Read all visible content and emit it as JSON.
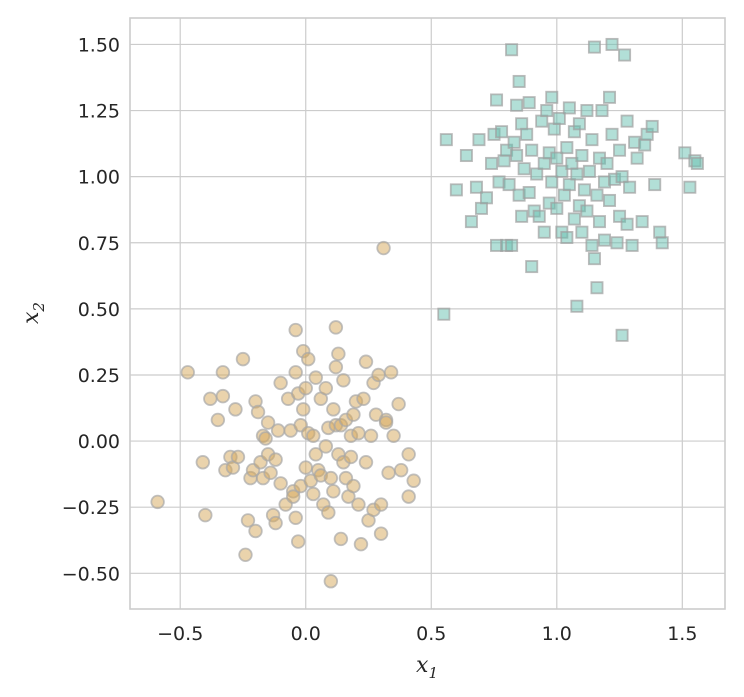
{
  "chart_data": {
    "type": "scatter",
    "title": "",
    "xlabel": "x_1",
    "ylabel": "x_2",
    "xlabel_parts": {
      "main": "x",
      "sub": "1"
    },
    "ylabel_parts": {
      "main": "x",
      "sub": "2"
    },
    "xlim": [
      -0.7,
      1.67
    ],
    "ylim": [
      -0.635,
      1.6
    ],
    "x_ticks": [
      -0.5,
      0.0,
      0.5,
      1.0,
      1.5
    ],
    "x_tick_labels": [
      "−0.5",
      "0.0",
      "0.5",
      "1.0",
      "1.5"
    ],
    "y_ticks": [
      -0.5,
      -0.25,
      0.0,
      0.25,
      0.5,
      0.75,
      1.0,
      1.25,
      1.5
    ],
    "y_tick_labels": [
      "−0.50",
      "−0.25",
      "0.00",
      "0.25",
      "0.50",
      "0.75",
      "1.00",
      "1.25",
      "1.50"
    ],
    "grid": true,
    "series": [
      {
        "marker": "circle",
        "color": "#d6a85a",
        "edge_color": "#a8a8a8",
        "opacity": 0.5,
        "points": [
          [
            -0.59,
            -0.23
          ],
          [
            -0.47,
            0.26
          ],
          [
            -0.41,
            -0.08
          ],
          [
            -0.4,
            -0.28
          ],
          [
            -0.38,
            0.16
          ],
          [
            -0.35,
            0.08
          ],
          [
            -0.33,
            0.26
          ],
          [
            -0.33,
            0.17
          ],
          [
            -0.32,
            -0.11
          ],
          [
            -0.3,
            -0.06
          ],
          [
            -0.29,
            -0.1
          ],
          [
            -0.28,
            0.12
          ],
          [
            -0.27,
            -0.06
          ],
          [
            -0.25,
            0.31
          ],
          [
            -0.24,
            -0.43
          ],
          [
            -0.23,
            -0.3
          ],
          [
            -0.22,
            -0.14
          ],
          [
            -0.21,
            -0.11
          ],
          [
            -0.2,
            0.15
          ],
          [
            -0.2,
            -0.34
          ],
          [
            -0.19,
            0.11
          ],
          [
            -0.18,
            -0.08
          ],
          [
            -0.17,
            0.02
          ],
          [
            -0.17,
            -0.14
          ],
          [
            -0.16,
            0.01
          ],
          [
            -0.15,
            -0.05
          ],
          [
            -0.15,
            0.07
          ],
          [
            -0.14,
            -0.12
          ],
          [
            -0.13,
            -0.28
          ],
          [
            -0.12,
            -0.31
          ],
          [
            -0.12,
            -0.07
          ],
          [
            -0.11,
            0.04
          ],
          [
            -0.1,
            0.22
          ],
          [
            -0.1,
            -0.16
          ],
          [
            -0.08,
            -0.24
          ],
          [
            -0.07,
            0.16
          ],
          [
            -0.06,
            0.04
          ],
          [
            -0.05,
            -0.19
          ],
          [
            -0.05,
            -0.21
          ],
          [
            -0.04,
            0.42
          ],
          [
            -0.04,
            0.26
          ],
          [
            -0.04,
            -0.29
          ],
          [
            -0.03,
            -0.38
          ],
          [
            -0.03,
            0.18
          ],
          [
            -0.02,
            0.06
          ],
          [
            -0.02,
            -0.17
          ],
          [
            -0.01,
            0.12
          ],
          [
            -0.01,
            0.34
          ],
          [
            0.0,
            0.2
          ],
          [
            0.0,
            -0.1
          ],
          [
            0.01,
            0.31
          ],
          [
            0.01,
            0.03
          ],
          [
            0.02,
            -0.15
          ],
          [
            0.03,
            0.02
          ],
          [
            0.03,
            -0.2
          ],
          [
            0.04,
            0.24
          ],
          [
            0.04,
            -0.05
          ],
          [
            0.05,
            -0.11
          ],
          [
            0.06,
            0.16
          ],
          [
            0.06,
            -0.13
          ],
          [
            0.07,
            -0.24
          ],
          [
            0.08,
            0.2
          ],
          [
            0.08,
            -0.02
          ],
          [
            0.09,
            0.05
          ],
          [
            0.09,
            -0.27
          ],
          [
            0.1,
            -0.53
          ],
          [
            0.1,
            -0.14
          ],
          [
            0.11,
            0.12
          ],
          [
            0.11,
            -0.19
          ],
          [
            0.12,
            0.06
          ],
          [
            0.12,
            0.43
          ],
          [
            0.12,
            0.28
          ],
          [
            0.13,
            0.33
          ],
          [
            0.13,
            -0.05
          ],
          [
            0.14,
            0.06
          ],
          [
            0.14,
            -0.37
          ],
          [
            0.15,
            0.23
          ],
          [
            0.15,
            -0.08
          ],
          [
            0.16,
            0.08
          ],
          [
            0.16,
            -0.14
          ],
          [
            0.17,
            -0.21
          ],
          [
            0.18,
            0.02
          ],
          [
            0.18,
            -0.06
          ],
          [
            0.19,
            0.1
          ],
          [
            0.19,
            -0.17
          ],
          [
            0.2,
            0.15
          ],
          [
            0.21,
            0.03
          ],
          [
            0.21,
            -0.24
          ],
          [
            0.22,
            -0.39
          ],
          [
            0.23,
            0.16
          ],
          [
            0.24,
            0.3
          ],
          [
            0.24,
            -0.08
          ],
          [
            0.25,
            -0.3
          ],
          [
            0.26,
            0.02
          ],
          [
            0.27,
            0.22
          ],
          [
            0.27,
            -0.26
          ],
          [
            0.28,
            0.1
          ],
          [
            0.29,
            0.25
          ],
          [
            0.3,
            -0.35
          ],
          [
            0.3,
            -0.24
          ],
          [
            0.31,
            0.73
          ],
          [
            0.32,
            0.08
          ],
          [
            0.32,
            0.07
          ],
          [
            0.33,
            -0.12
          ],
          [
            0.34,
            0.26
          ],
          [
            0.35,
            0.02
          ],
          [
            0.37,
            0.14
          ],
          [
            0.38,
            -0.11
          ],
          [
            0.41,
            -0.21
          ],
          [
            0.41,
            -0.05
          ],
          [
            0.43,
            -0.15
          ]
        ]
      },
      {
        "marker": "square",
        "color": "#66bfb0",
        "edge_color": "#a0a0a0",
        "opacity": 0.5,
        "points": [
          [
            0.55,
            0.48
          ],
          [
            0.56,
            1.14
          ],
          [
            0.6,
            0.95
          ],
          [
            0.64,
            1.08
          ],
          [
            0.66,
            0.83
          ],
          [
            0.68,
            0.96
          ],
          [
            0.69,
            1.14
          ],
          [
            0.7,
            0.88
          ],
          [
            0.72,
            0.92
          ],
          [
            0.74,
            1.05
          ],
          [
            0.75,
            1.16
          ],
          [
            0.76,
            0.74
          ],
          [
            0.76,
            1.29
          ],
          [
            0.77,
            0.98
          ],
          [
            0.78,
            1.17
          ],
          [
            0.79,
            1.06
          ],
          [
            0.8,
            0.74
          ],
          [
            0.8,
            1.1
          ],
          [
            0.81,
            0.97
          ],
          [
            0.82,
            0.74
          ],
          [
            0.82,
            1.48
          ],
          [
            0.83,
            1.13
          ],
          [
            0.84,
            1.08
          ],
          [
            0.84,
            1.27
          ],
          [
            0.85,
            0.93
          ],
          [
            0.85,
            1.36
          ],
          [
            0.86,
            1.2
          ],
          [
            0.86,
            0.85
          ],
          [
            0.87,
            1.03
          ],
          [
            0.88,
            1.16
          ],
          [
            0.89,
            0.94
          ],
          [
            0.89,
            1.28
          ],
          [
            0.9,
            0.66
          ],
          [
            0.9,
            1.1
          ],
          [
            0.91,
            0.87
          ],
          [
            0.92,
            1.01
          ],
          [
            0.93,
            0.85
          ],
          [
            0.94,
            1.21
          ],
          [
            0.95,
            0.79
          ],
          [
            0.95,
            1.05
          ],
          [
            0.96,
            1.25
          ],
          [
            0.97,
            0.9
          ],
          [
            0.97,
            1.09
          ],
          [
            0.98,
            1.3
          ],
          [
            0.98,
            0.98
          ],
          [
            0.99,
            1.18
          ],
          [
            1.0,
            0.88
          ],
          [
            1.0,
            1.07
          ],
          [
            1.01,
            1.22
          ],
          [
            1.02,
            0.79
          ],
          [
            1.02,
            1.02
          ],
          [
            1.03,
            0.93
          ],
          [
            1.04,
            1.11
          ],
          [
            1.04,
            0.77
          ],
          [
            1.05,
            1.26
          ],
          [
            1.05,
            0.97
          ],
          [
            1.06,
            1.05
          ],
          [
            1.07,
            0.84
          ],
          [
            1.07,
            1.17
          ],
          [
            1.08,
            1.01
          ],
          [
            1.08,
            0.51
          ],
          [
            1.09,
            0.89
          ],
          [
            1.09,
            1.2
          ],
          [
            1.1,
            0.79
          ],
          [
            1.1,
            1.08
          ],
          [
            1.11,
            0.95
          ],
          [
            1.12,
            1.25
          ],
          [
            1.12,
            0.87
          ],
          [
            1.13,
            1.02
          ],
          [
            1.14,
            0.74
          ],
          [
            1.14,
            1.14
          ],
          [
            1.15,
            0.69
          ],
          [
            1.15,
            1.49
          ],
          [
            1.16,
            0.58
          ],
          [
            1.16,
            0.93
          ],
          [
            1.17,
            1.07
          ],
          [
            1.17,
            0.83
          ],
          [
            1.18,
            1.25
          ],
          [
            1.19,
            0.98
          ],
          [
            1.19,
            0.76
          ],
          [
            1.2,
            1.05
          ],
          [
            1.21,
            1.3
          ],
          [
            1.21,
            0.91
          ],
          [
            1.22,
            1.5
          ],
          [
            1.22,
            1.16
          ],
          [
            1.23,
            0.99
          ],
          [
            1.24,
            0.75
          ],
          [
            1.25,
            0.85
          ],
          [
            1.25,
            1.1
          ],
          [
            1.26,
            0.4
          ],
          [
            1.26,
            1.0
          ],
          [
            1.27,
            1.46
          ],
          [
            1.28,
            0.82
          ],
          [
            1.28,
            1.21
          ],
          [
            1.29,
            0.96
          ],
          [
            1.3,
            0.74
          ],
          [
            1.31,
            1.13
          ],
          [
            1.32,
            1.07
          ],
          [
            1.34,
            0.83
          ],
          [
            1.35,
            1.12
          ],
          [
            1.36,
            1.16
          ],
          [
            1.38,
            1.19
          ],
          [
            1.39,
            0.97
          ],
          [
            1.41,
            0.79
          ],
          [
            1.42,
            0.75
          ],
          [
            1.51,
            1.09
          ],
          [
            1.53,
            0.96
          ],
          [
            1.55,
            1.06
          ],
          [
            1.56,
            1.05
          ]
        ]
      }
    ]
  }
}
